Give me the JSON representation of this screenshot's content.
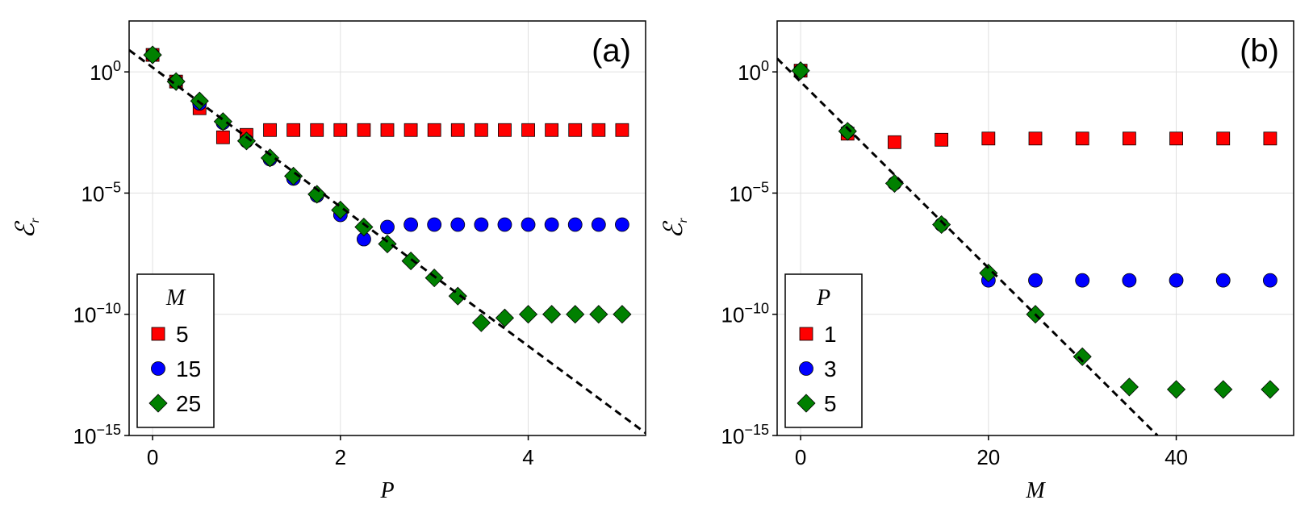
{
  "chart_data": [
    {
      "type": "scatter",
      "panel_label": "(a)",
      "xlabel": "P",
      "ylabel": "ℰ",
      "ylabel_sub": "r",
      "yscale": "log",
      "xlim": [
        -0.25,
        5.25
      ],
      "ylim_exp": [
        -15,
        2.1
      ],
      "x_ticks": [
        0,
        2,
        4
      ],
      "x_tick_labels": [
        "0",
        "2",
        "4"
      ],
      "y_ticks_exp": [
        0,
        -5,
        -10,
        -15
      ],
      "y_tick_labels": [
        {
          "base": "10",
          "exp": "0"
        },
        {
          "base": "10",
          "exp": "−5"
        },
        {
          "base": "10",
          "exp": "−10"
        },
        {
          "base": "10",
          "exp": "−15"
        }
      ],
      "grid": true,
      "legend": {
        "title": "M",
        "position": "bottom-left"
      },
      "series": [
        {
          "name": "5",
          "marker": "square",
          "color": "#ff0000",
          "x": [
            0,
            0.25,
            0.5,
            0.75,
            1,
            1.25,
            1.5,
            1.75,
            2,
            2.25,
            2.5,
            2.75,
            3,
            3.25,
            3.5,
            3.75,
            4,
            4.25,
            4.5,
            4.75,
            5
          ],
          "log10_y": [
            0.7,
            -0.4,
            -1.5,
            -2.7,
            -2.6,
            -2.4,
            -2.4,
            -2.4,
            -2.4,
            -2.4,
            -2.4,
            -2.4,
            -2.4,
            -2.4,
            -2.4,
            -2.4,
            -2.4,
            -2.4,
            -2.4,
            -2.4,
            -2.4
          ]
        },
        {
          "name": "15",
          "marker": "circle",
          "color": "#0000ff",
          "x": [
            0,
            0.25,
            0.5,
            0.75,
            1,
            1.25,
            1.5,
            1.75,
            2,
            2.25,
            2.5,
            2.75,
            3,
            3.25,
            3.5,
            3.75,
            4,
            4.25,
            4.5,
            4.75,
            5
          ],
          "log10_y": [
            0.7,
            -0.4,
            -1.3,
            -2.1,
            -2.85,
            -3.6,
            -4.4,
            -5.1,
            -5.9,
            -6.9,
            -6.4,
            -6.3,
            -6.3,
            -6.3,
            -6.3,
            -6.3,
            -6.3,
            -6.3,
            -6.3,
            -6.3,
            -6.3
          ]
        },
        {
          "name": "25",
          "marker": "diamond",
          "color": "#008000",
          "x": [
            0,
            0.25,
            0.5,
            0.75,
            1,
            1.25,
            1.5,
            1.75,
            2,
            2.25,
            2.5,
            2.75,
            3,
            3.25,
            3.5,
            3.75,
            4,
            4.25,
            4.5,
            4.75,
            5
          ],
          "log10_y": [
            0.7,
            -0.4,
            -1.2,
            -2.05,
            -2.85,
            -3.55,
            -4.3,
            -5.05,
            -5.7,
            -6.4,
            -7.1,
            -7.8,
            -8.5,
            -9.25,
            -10.35,
            -10.15,
            -10.0,
            -10.0,
            -10.0,
            -10.0,
            -10.0
          ]
        }
      ],
      "reference_line": {
        "style": "dashed",
        "color": "#000000",
        "x": [
          -0.25,
          5.25
        ],
        "log10_y": [
          0.9,
          -14.9
        ]
      }
    },
    {
      "type": "scatter",
      "panel_label": "(b)",
      "xlabel": "M",
      "ylabel": "ℰ",
      "ylabel_sub": "r",
      "yscale": "log",
      "xlim": [
        -2.5,
        52.5
      ],
      "ylim_exp": [
        -15,
        2.1
      ],
      "x_ticks": [
        0,
        20,
        40
      ],
      "x_tick_labels": [
        "0",
        "20",
        "40"
      ],
      "y_ticks_exp": [
        0,
        -5,
        -10,
        -15
      ],
      "y_tick_labels": [
        {
          "base": "10",
          "exp": "0"
        },
        {
          "base": "10",
          "exp": "−5"
        },
        {
          "base": "10",
          "exp": "−10"
        },
        {
          "base": "10",
          "exp": "−15"
        }
      ],
      "grid": true,
      "legend": {
        "title": "P",
        "position": "bottom-left"
      },
      "series": [
        {
          "name": "1",
          "marker": "square",
          "color": "#ff0000",
          "x": [
            0,
            5,
            10,
            15,
            20,
            25,
            30,
            35,
            40,
            45,
            50
          ],
          "log10_y": [
            0.05,
            -2.55,
            -2.9,
            -2.8,
            -2.75,
            -2.75,
            -2.75,
            -2.75,
            -2.75,
            -2.75,
            -2.75
          ]
        },
        {
          "name": "3",
          "marker": "circle",
          "color": "#0000ff",
          "x": [
            0,
            5,
            10,
            15,
            20,
            25,
            30,
            35,
            40,
            45,
            50
          ],
          "log10_y": [
            0.05,
            -2.45,
            -4.6,
            -6.3,
            -8.6,
            -8.6,
            -8.6,
            -8.6,
            -8.6,
            -8.6,
            -8.6
          ]
        },
        {
          "name": "5",
          "marker": "diamond",
          "color": "#008000",
          "x": [
            0,
            5,
            10,
            15,
            20,
            25,
            30,
            35,
            40,
            45,
            50
          ],
          "log10_y": [
            0.05,
            -2.45,
            -4.6,
            -6.3,
            -8.3,
            -10.0,
            -11.75,
            -13.0,
            -13.1,
            -13.1,
            -13.1
          ]
        }
      ],
      "reference_line": {
        "style": "dashed",
        "color": "#000000",
        "x": [
          -2.5,
          38
        ],
        "log10_y": [
          0.55,
          -15.0
        ]
      }
    }
  ]
}
